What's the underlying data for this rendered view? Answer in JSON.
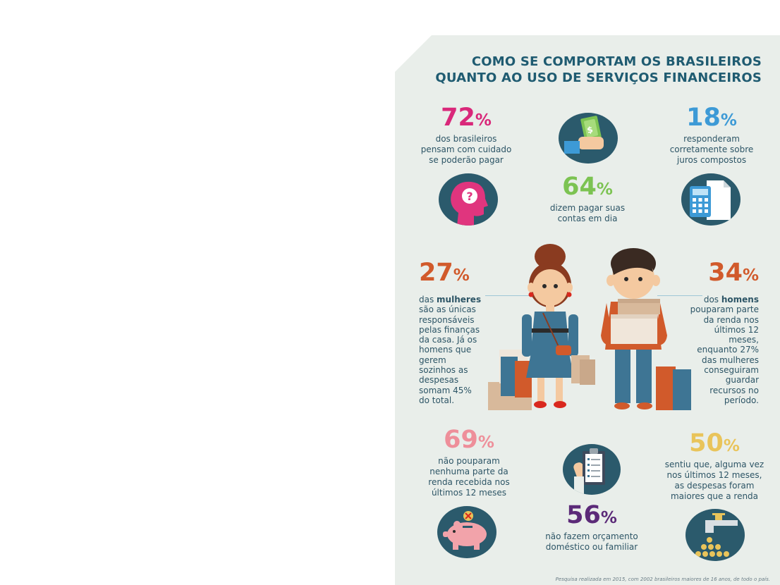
{
  "title": {
    "line1": "COMO SE COMPORTAM OS BRASILEIROS",
    "line2": "QUANTO AO USO DE SERVIÇOS FINANCEIROS"
  },
  "colors": {
    "card_background": "#e9eeea",
    "dark_teal": "#2b5a6c",
    "magenta": "#d9287a",
    "blue": "#3d9ad6",
    "green": "#7cc352",
    "orange": "#d15a2b",
    "pink": "#ee8f9a",
    "yellow": "#e9c45a",
    "purple": "#5b2a78"
  },
  "stats": {
    "s72": {
      "value": "72",
      "pct": "%",
      "lines": [
        "dos brasileiros",
        "pensam com cuidado",
        "se poderão pagar"
      ]
    },
    "s18": {
      "value": "18",
      "pct": "%",
      "lines": [
        "responderam",
        "corretamente sobre",
        "juros compostos"
      ]
    },
    "s64": {
      "value": "64",
      "pct": "%",
      "lines": [
        "dizem pagar suas",
        "contas em dia"
      ]
    },
    "s27": {
      "value": "27",
      "pct": "%",
      "bold_word": "mulheres",
      "lines": [
        "das ",
        "são as únicas",
        "responsáveis",
        "pelas finanças",
        "da casa. Já os",
        "homens que",
        "gerem",
        "sozinhos as",
        "despesas",
        "somam 45%",
        "do total."
      ]
    },
    "s34": {
      "value": "34",
      "pct": "%",
      "bold_word": "homens",
      "lines": [
        "dos ",
        "pouparam parte",
        "da renda nos",
        "últimos 12",
        "meses,",
        "enquanto 27%",
        "das mulheres",
        "conseguiram",
        "guardar",
        "recursos no",
        "período."
      ]
    },
    "s69": {
      "value": "69",
      "pct": "%",
      "lines": [
        "não pouparam",
        "nenhuma parte da",
        "renda recebida nos",
        "últimos 12 meses"
      ]
    },
    "s50": {
      "value": "50",
      "pct": "%",
      "lines": [
        "sentiu que, alguma vez",
        "nos últimos 12 meses,",
        "as despesas foram",
        "maiores que a renda"
      ]
    },
    "s56": {
      "value": "56",
      "pct": "%",
      "lines": [
        "não fazem orçamento",
        "doméstico ou familiar"
      ]
    }
  },
  "icons": {
    "money_hand": "money-hand-icon",
    "head_question": "head-question-icon",
    "calculator": "calculator-icon",
    "clipboard": "clipboard-icon",
    "piggy_bank": "piggy-bank-icon",
    "faucet_coins": "faucet-coins-icon",
    "question_mark": "?",
    "money_symbol": "$"
  },
  "footer": "Pesquisa realizada em 2015, com 2002 brasileiros maiores de 16 anos, de todo o país."
}
